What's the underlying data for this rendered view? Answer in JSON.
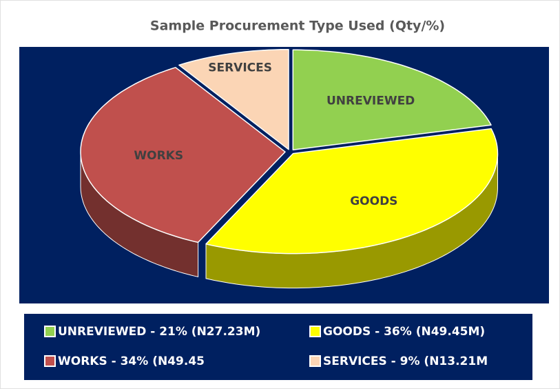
{
  "chart_data": {
    "type": "pie",
    "title": "Sample Procurement Type Used (Qty/%)",
    "categories": [
      "UNREVIEWED",
      "GOODS",
      "WORKS",
      "SERVICES"
    ],
    "values": [
      21,
      36,
      34,
      9
    ],
    "colors": [
      "#92d050",
      "#ffff00",
      "#c0504d",
      "#fbd5b5"
    ],
    "legend_labels": [
      "UNREVIEWED - 21% (N27.23M)",
      "GOODS - 36% (N49.45M)",
      "WORKS - 34% (N49.45",
      "SERVICES - 9% (N13.21M"
    ]
  }
}
